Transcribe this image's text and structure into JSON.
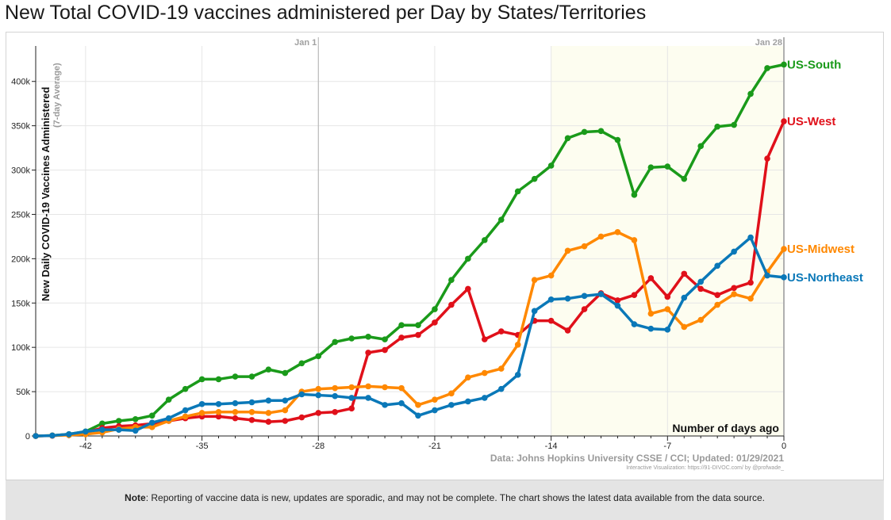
{
  "title": "New Total COVID-19 vaccines administered per Day by States/Territories",
  "note": {
    "label": "Note",
    "text": ": Reporting of vaccine data is new, updates are sporadic, and may not be complete. The chart shows the latest data available from the data source."
  },
  "chart_data": {
    "type": "line",
    "title": "New Total COVID-19 vaccines administered per Day by States/Territories",
    "xlabel": "Number of days ago",
    "ylabel": "New Daily COVID-19 Vaccines Administered",
    "ylabel_sub": "(7-day Average)",
    "xlim": [
      -45,
      0
    ],
    "ylim": [
      0,
      440000
    ],
    "x_ticks": [
      -42,
      -35,
      -28,
      -21,
      -14,
      -7,
      0
    ],
    "x_tick_labels": [
      "-42",
      "-35",
      "-28",
      "-21",
      "-14",
      "-7",
      "0"
    ],
    "y_ticks": [
      0,
      50000,
      100000,
      150000,
      200000,
      250000,
      300000,
      350000,
      400000
    ],
    "y_tick_labels": [
      "0",
      "50k",
      "100k",
      "150k",
      "200k",
      "250k",
      "300k",
      "350k",
      "400k"
    ],
    "grid": true,
    "legend": "labels at line ends (right)",
    "markers": [
      {
        "x": -28,
        "label": "Jan 1"
      },
      {
        "x": 0,
        "label": "Jan 28"
      }
    ],
    "highlight_region": {
      "x_start": -14,
      "x_end": 0,
      "color": "#fdfdf0"
    },
    "source": "Data: Johns Hopkins University CSSE / CCI; Updated: 01/29/2021",
    "credit": "Interactive Visualization: https://91-DIVOC.com/ by @profwade_",
    "x": [
      -45,
      -44,
      -43,
      -42,
      -41,
      -40,
      -39,
      -38,
      -37,
      -36,
      -35,
      -34,
      -33,
      -32,
      -31,
      -30,
      -29,
      -28,
      -27,
      -26,
      -25,
      -24,
      -23,
      -22,
      -21,
      -20,
      -19,
      -18,
      -17,
      -16,
      -15,
      -14,
      -13,
      -12,
      -11,
      -10,
      -9,
      -8,
      -7,
      -6,
      -5,
      -4,
      -3,
      -2,
      -1,
      0
    ],
    "series": [
      {
        "name": "US-South",
        "color": "#1a9a1a",
        "values": [
          0,
          500,
          2000,
          5000,
          14000,
          17000,
          19000,
          23000,
          41000,
          53000,
          64000,
          64000,
          67000,
          67000,
          75000,
          71000,
          82000,
          90000,
          106000,
          110000,
          112000,
          109000,
          125000,
          125000,
          143000,
          176000,
          200000,
          221000,
          244000,
          276000,
          290000,
          305000,
          336000,
          343000,
          344000,
          334000,
          272000,
          303000,
          304000,
          290000,
          327000,
          349000,
          351000,
          386000,
          415000,
          419000
        ]
      },
      {
        "name": "US-West",
        "color": "#e0101a",
        "values": [
          0,
          300,
          1500,
          4000,
          9000,
          11000,
          12000,
          14000,
          17000,
          20000,
          22000,
          22000,
          20000,
          18000,
          16000,
          17000,
          21000,
          26000,
          27000,
          31000,
          94000,
          97000,
          111000,
          114000,
          128000,
          148000,
          166000,
          109000,
          118000,
          114000,
          130000,
          130000,
          119000,
          143000,
          161000,
          153000,
          159000,
          178000,
          157000,
          183000,
          166000,
          159000,
          167000,
          173000,
          313000,
          355000
        ]
      },
      {
        "name": "US-Midwest",
        "color": "#ff8800",
        "values": [
          0,
          500,
          1000,
          2000,
          4000,
          8000,
          10000,
          10000,
          17000,
          22000,
          26000,
          27000,
          27000,
          27000,
          26000,
          29000,
          50000,
          53000,
          54000,
          55000,
          56000,
          55000,
          54000,
          35000,
          41000,
          48000,
          66000,
          71000,
          76000,
          103000,
          176000,
          181000,
          209000,
          214000,
          225000,
          230000,
          221000,
          138000,
          143000,
          123000,
          131000,
          148000,
          160000,
          155000,
          185000,
          211000
        ]
      },
      {
        "name": "US-Northeast",
        "color": "#0a78b8",
        "values": [
          0,
          500,
          2000,
          5000,
          7000,
          7000,
          6000,
          15000,
          20000,
          29000,
          36000,
          36000,
          37000,
          38000,
          40000,
          40000,
          47000,
          46000,
          45000,
          43000,
          43000,
          35000,
          37000,
          23000,
          29000,
          35000,
          39000,
          43000,
          53000,
          69000,
          141000,
          154000,
          155000,
          158000,
          160000,
          147000,
          126000,
          121000,
          120000,
          156000,
          174000,
          192000,
          208000,
          224000,
          181000,
          179000
        ]
      }
    ]
  }
}
